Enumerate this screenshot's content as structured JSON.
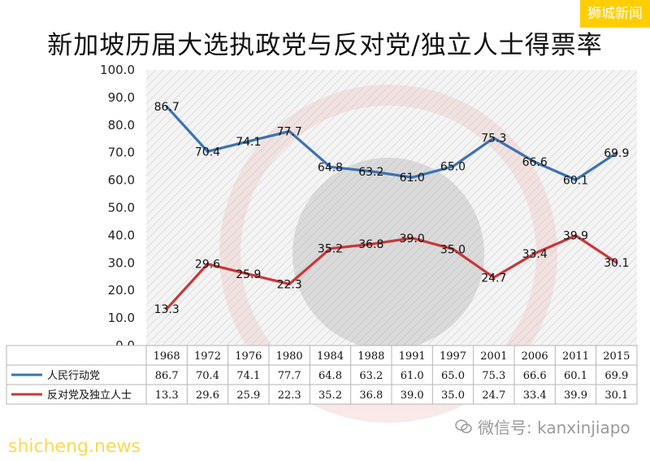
{
  "brand": "狮城新闻",
  "wechat_text": "微信号: kanxinjiapo",
  "site": "shicheng.news",
  "colors": {
    "series1": "#3b73b0",
    "series2": "#c9373a",
    "brand_bg": "#ffce00"
  },
  "chart_data": {
    "type": "line",
    "title": "新加坡历届大选执政党与反对党/独立人士得票率",
    "x": [
      "1968",
      "1972",
      "1976",
      "1980",
      "1984",
      "1988",
      "1991",
      "1997",
      "2001",
      "2006",
      "2011",
      "2015"
    ],
    "y_ticks": [
      "100.0",
      "90.0",
      "80.0",
      "70.0",
      "60.0",
      "50.0",
      "40.0",
      "30.0",
      "20.0",
      "10.0",
      "0.0"
    ],
    "ylim": [
      0,
      100
    ],
    "grid": true,
    "legend": "data table below plot",
    "series": [
      {
        "name": "人民行动党",
        "color": "#3b73b0",
        "values": [
          86.7,
          70.4,
          74.1,
          77.7,
          64.8,
          63.2,
          61.0,
          65.0,
          75.3,
          66.6,
          60.1,
          69.9
        ],
        "labels": [
          "86.7",
          "70.4",
          "74.1",
          "77.7",
          "64.8",
          "63.2",
          "61.0",
          "65.0",
          "75.3",
          "66.6",
          "60.1",
          "69.9"
        ]
      },
      {
        "name": "反对党及独立人士",
        "color": "#c9373a",
        "values": [
          13.3,
          29.6,
          25.9,
          22.3,
          35.2,
          36.8,
          39.0,
          35.0,
          24.7,
          33.4,
          39.9,
          30.1
        ],
        "labels": [
          "13.3",
          "29.6",
          "25.9",
          "22.3",
          "35.2",
          "36.8",
          "39.0",
          "35.0",
          "24.7",
          "33.4",
          "39.9",
          "30.1"
        ]
      }
    ]
  }
}
